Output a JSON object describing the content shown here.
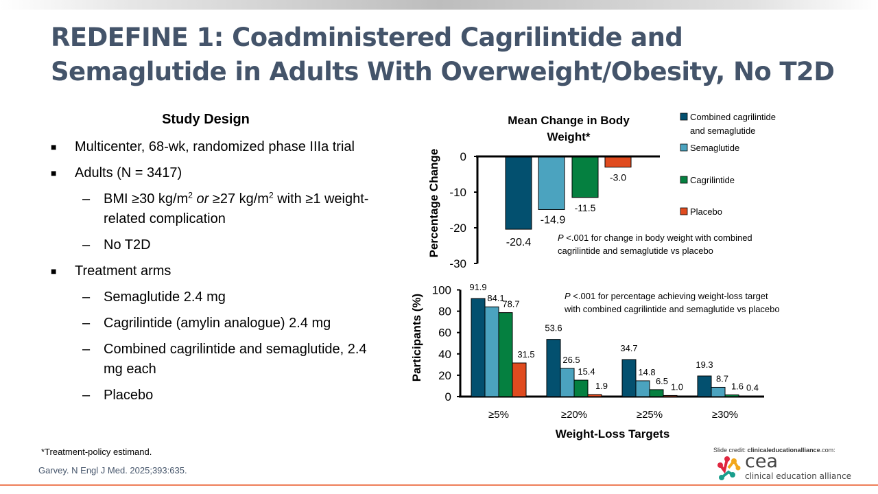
{
  "title": "REDEFINE 1: Coadministered Cagrilintide and Semaglutide in Adults With Overweight/Obesity, No T2D",
  "study_design": {
    "heading": "Study Design",
    "items": [
      {
        "level": 1,
        "marker": "■",
        "text": "Multicenter, 68-wk, randomized phase IIIa trial"
      },
      {
        "level": 1,
        "marker": "■",
        "text": "Adults (N = 3417)"
      },
      {
        "level": 2,
        "marker": "–",
        "parts": [
          "BMI ≥30 kg/m",
          "2",
          " ",
          "or",
          " ≥27 kg/m",
          "2",
          " with ≥1 weight-related complication"
        ]
      },
      {
        "level": 2,
        "marker": "–",
        "text": "No T2D"
      },
      {
        "level": 1,
        "marker": "■",
        "text": "Treatment arms"
      },
      {
        "level": 2,
        "marker": "–",
        "text": "Semaglutide 2.4 mg"
      },
      {
        "level": 2,
        "marker": "–",
        "text": "Cagrilintide (amylin analogue) 2.4 mg"
      },
      {
        "level": 2,
        "marker": "–",
        "text": "Combined cagrilintide and semaglutide, 2.4 mg each"
      },
      {
        "level": 2,
        "marker": "–",
        "text": "Placebo"
      }
    ]
  },
  "colors": {
    "combined": "#03506F",
    "semaglutide": "#4BA3BF",
    "cagrilintide": "#058040",
    "placebo": "#E04B1F",
    "title": "#44546A",
    "accent_line": "#EE7D57"
  },
  "legend": [
    {
      "key": "combined",
      "label_lines": [
        "Combined cagrilintide",
        "and semaglutide"
      ]
    },
    {
      "key": "semaglutide",
      "label_lines": [
        "Semaglutide"
      ]
    },
    {
      "key": "cagrilintide",
      "label_lines": [
        "Cagrilintide"
      ]
    },
    {
      "key": "placebo",
      "label_lines": [
        "Placebo"
      ]
    }
  ],
  "chart_data": [
    {
      "type": "bar",
      "title": "Mean Change in Body Weight*",
      "title_lines": [
        "Mean Change in Body",
        "Weight*"
      ],
      "ylabel": "Percentage Change",
      "xlabel": "",
      "ylim": [
        -30,
        0
      ],
      "yticks": [
        0,
        -10,
        -20,
        -30
      ],
      "categories": [
        "Combined cagrilintide and semaglutide",
        "Semaglutide",
        "Cagrilintide",
        "Placebo"
      ],
      "series_keys": [
        "combined",
        "semaglutide",
        "cagrilintide",
        "placebo"
      ],
      "values": [
        -20.4,
        -14.9,
        -11.5,
        -3.0
      ],
      "value_labels": [
        "-20.4",
        "-14.9",
        "-11.5",
        "-3.0"
      ],
      "annotation_lines": [
        "P <.001 for change in body weight with combined",
        "cagrilintide and semaglutide vs placebo"
      ],
      "legend_position": "right",
      "grid": false
    },
    {
      "type": "bar",
      "title": "",
      "ylabel": "Participants (%)",
      "xlabel": "Weight-Loss Targets",
      "ylim": [
        0,
        100
      ],
      "yticks": [
        0,
        20,
        40,
        60,
        80,
        100
      ],
      "categories": [
        "≥5%",
        "≥20%",
        "≥25%",
        "≥30%"
      ],
      "series": [
        {
          "name": "Combined cagrilintide and semaglutide",
          "key": "combined",
          "values": [
            91.9,
            53.6,
            34.7,
            19.3
          ],
          "labels": [
            "91.9",
            "53.6",
            "34.7",
            "19.3"
          ]
        },
        {
          "name": "Semaglutide",
          "key": "semaglutide",
          "values": [
            84.1,
            26.5,
            14.8,
            8.7
          ],
          "labels": [
            "84.1",
            "26.5",
            "14.8",
            "8.7"
          ]
        },
        {
          "name": "Cagrilintide",
          "key": "cagrilintide",
          "values": [
            78.7,
            15.4,
            6.5,
            1.6
          ],
          "labels": [
            "78.7",
            "15.4",
            "6.5",
            "1.6"
          ]
        },
        {
          "name": "Placebo",
          "key": "placebo",
          "values": [
            31.5,
            1.9,
            1.0,
            0.4
          ],
          "labels": [
            "31.5",
            "1.9",
            "1.0",
            "0.4"
          ]
        }
      ],
      "annotation_lines": [
        "P <.001 for percentage achieving weight-loss target",
        "with combined cagrilintide and semaglutide vs placebo"
      ],
      "grid": false
    }
  ],
  "footer": {
    "footnote": "*Treatment-policy estimand.",
    "reference": "Garvey. N Engl J Med. 2025;393:635.",
    "credit_prefix": "Slide credit: ",
    "credit_site": "clinicaleducationalliance",
    "credit_suffix": ".com:",
    "logo_text": "cea",
    "logo_subtext": "clinical education alliance"
  }
}
